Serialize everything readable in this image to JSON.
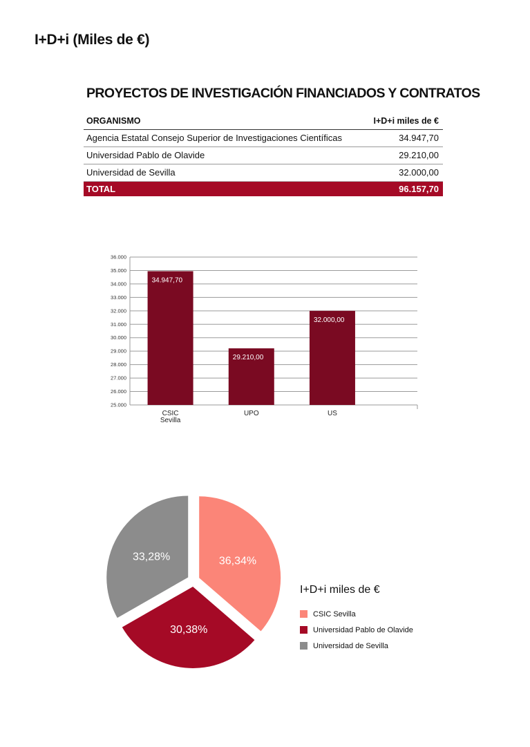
{
  "page": {
    "title": "I+D+i (Miles de €)"
  },
  "table": {
    "title": "PROYECTOS DE INVESTIGACIÓN FINANCIADOS Y CONTRATOS",
    "headers": {
      "organismo": "ORGANISMO",
      "valor": "I+D+i miles de €"
    },
    "rows": [
      {
        "organismo": "Agencia Estatal Consejo Superior de Investigaciones Científicas",
        "valor": "34.947,70"
      },
      {
        "organismo": "Universidad Pablo de Olavide",
        "valor": "29.210,00"
      },
      {
        "organismo": "Universidad de Sevilla",
        "valor": "32.000,00"
      }
    ],
    "total": {
      "label": "TOTAL",
      "valor": "96.157,70"
    }
  },
  "chart_data": [
    {
      "type": "bar",
      "categories": [
        "CSIC Sevilla",
        "UPO",
        "US"
      ],
      "values": [
        34947.7,
        29210.0,
        32000.0
      ],
      "data_labels": [
        "34.947,70",
        "29.210,00",
        "32.000,00"
      ],
      "ylim": [
        25000,
        36000
      ],
      "yticks": [
        "25.000",
        "26.000",
        "27.000",
        "28.000",
        "29.000",
        "30.000",
        "31.000",
        "32.000",
        "33.000",
        "34.000",
        "35.000",
        "36.000"
      ],
      "grid": true,
      "bar_color": "#7a0a22"
    },
    {
      "type": "pie",
      "title": "I+D+i miles de €",
      "legend_placement": "right",
      "slices": [
        {
          "name": "CSIC Sevilla",
          "value": 36.34,
          "label": "36,34%",
          "color": "#fb8578"
        },
        {
          "name": "Universidad Pablo de Olavide",
          "value": 30.38,
          "label": "30,38%",
          "color": "#a50a26"
        },
        {
          "name": "Universidad de Sevilla",
          "value": 33.28,
          "label": "33,28%",
          "color": "#8c8c8c"
        }
      ]
    }
  ]
}
